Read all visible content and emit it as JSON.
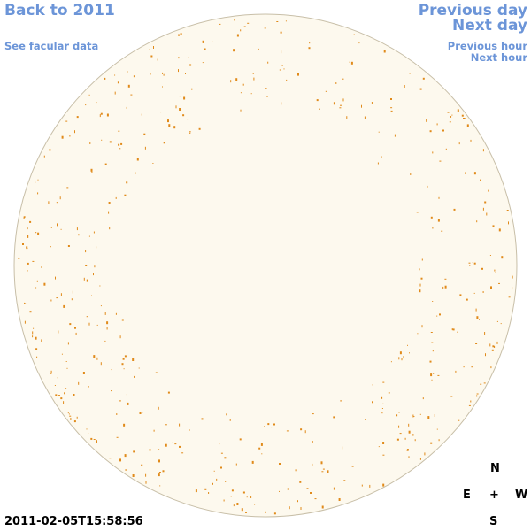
{
  "nav": {
    "back_label": "Back to 2011",
    "facular_label": "See facular data",
    "prev_day_label": "Previous day",
    "next_day_label": "Next day",
    "prev_hour_label": "Previous hour",
    "next_hour_label": "Next hour"
  },
  "timestamp": "2011-02-05T15:58:56",
  "compass": {
    "north": "N",
    "east": "E",
    "center": "+",
    "west": "W",
    "south": "S"
  },
  "colors": {
    "disk_fill": "#fdf9ee",
    "disk_edge": "#c8bfa8",
    "facula": "#e08a1a",
    "link": "#6c95d8"
  }
}
